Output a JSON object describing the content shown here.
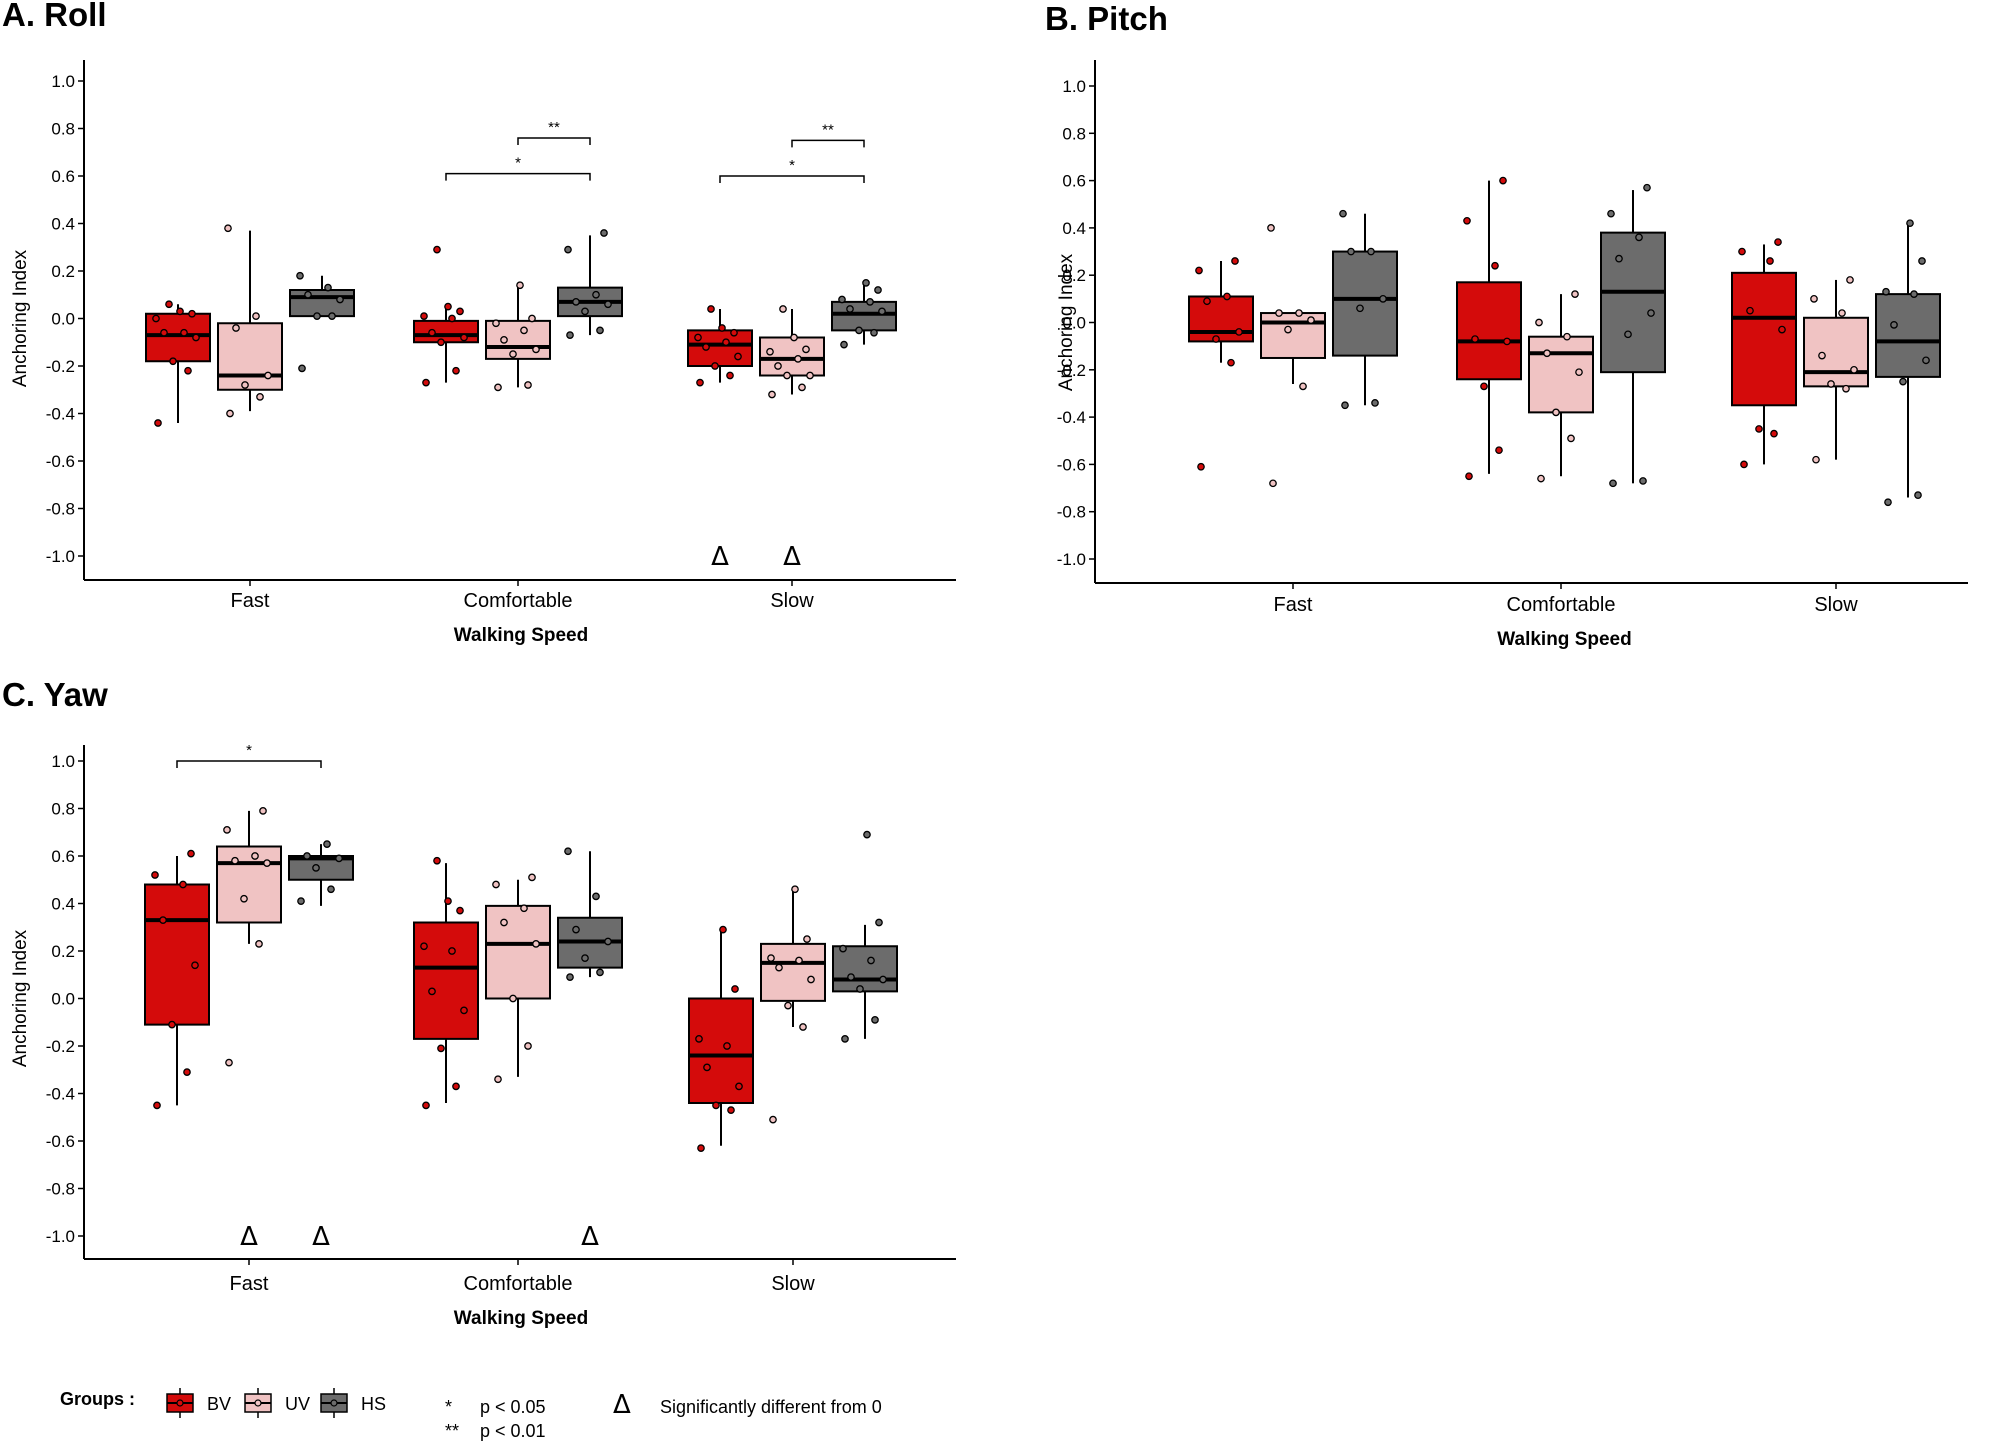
{
  "colors": {
    "BV": "#d40b0b",
    "UV": "#f0c3c3",
    "HS": "#6c6c6c"
  },
  "chart_data": [
    {
      "type": "boxplot",
      "title": "A. Roll",
      "xlabel": "Walking Speed",
      "ylabel": "Anchoring Index",
      "ylim": [
        -1.0,
        1.0
      ],
      "yticks": [
        "1.0",
        "0.8",
        "0.6",
        "0.4",
        "0.2",
        "0.0",
        "-0.2",
        "-0.4",
        "-0.6",
        "-0.8",
        "-1.0"
      ],
      "categories": [
        "Fast",
        "Comfortable",
        "Slow"
      ],
      "series": [
        {
          "name": "BV",
          "boxes": [
            {
              "min": -0.44,
              "q1": -0.18,
              "median": -0.07,
              "q3": 0.02,
              "max": 0.06,
              "points": [
                -0.44,
                -0.22,
                -0.18,
                -0.08,
                -0.06,
                -0.06,
                0.0,
                0.02,
                0.03,
                0.06
              ]
            },
            {
              "min": -0.27,
              "q1": -0.1,
              "median": -0.07,
              "q3": -0.01,
              "max": 0.05,
              "points": [
                -0.27,
                -0.22,
                -0.1,
                -0.08,
                -0.06,
                0.0,
                0.01,
                0.03,
                0.05,
                0.29
              ]
            },
            {
              "min": -0.27,
              "q1": -0.2,
              "median": -0.11,
              "q3": -0.05,
              "max": 0.04,
              "points": [
                -0.27,
                -0.24,
                -0.2,
                -0.16,
                -0.12,
                -0.1,
                -0.08,
                -0.06,
                -0.04,
                0.04
              ]
            }
          ]
        },
        {
          "name": "UV",
          "boxes": [
            {
              "min": -0.39,
              "q1": -0.3,
              "median": -0.24,
              "q3": -0.02,
              "max": 0.37,
              "points": [
                -0.4,
                -0.33,
                -0.28,
                -0.24,
                -0.04,
                0.01,
                0.38
              ]
            },
            {
              "min": -0.29,
              "q1": -0.17,
              "median": -0.12,
              "q3": -0.01,
              "max": 0.14,
              "points": [
                -0.29,
                -0.28,
                -0.15,
                -0.13,
                -0.09,
                -0.05,
                -0.02,
                0.0,
                0.14
              ]
            },
            {
              "min": -0.32,
              "q1": -0.24,
              "median": -0.17,
              "q3": -0.08,
              "max": 0.04,
              "points": [
                -0.32,
                -0.29,
                -0.24,
                -0.24,
                -0.2,
                -0.17,
                -0.14,
                -0.13,
                -0.08,
                0.04
              ]
            }
          ]
        },
        {
          "name": "HS",
          "boxes": [
            {
              "min": 0.01,
              "q1": 0.01,
              "median": 0.09,
              "q3": 0.12,
              "max": 0.18,
              "points": [
                -0.21,
                0.01,
                0.01,
                0.08,
                0.1,
                0.13,
                0.18
              ]
            },
            {
              "min": -0.07,
              "q1": 0.01,
              "median": 0.07,
              "q3": 0.13,
              "max": 0.35,
              "points": [
                -0.07,
                -0.05,
                0.03,
                0.06,
                0.07,
                0.1,
                0.29,
                0.36
              ]
            },
            {
              "min": -0.11,
              "q1": -0.05,
              "median": 0.02,
              "q3": 0.07,
              "max": 0.14,
              "points": [
                -0.11,
                -0.06,
                -0.05,
                0.03,
                0.04,
                0.07,
                0.08,
                0.12,
                0.15
              ]
            }
          ]
        }
      ],
      "significance": [
        {
          "category": "Comfortable",
          "from": "BV",
          "to": "HS",
          "label": "*",
          "y": 0.61
        },
        {
          "category": "Comfortable",
          "from": "UV",
          "to": "HS",
          "label": "**",
          "y": 0.76
        },
        {
          "category": "Slow",
          "from": "BV",
          "to": "HS",
          "label": "*",
          "y": 0.6
        },
        {
          "category": "Slow",
          "from": "UV",
          "to": "HS",
          "label": "**",
          "y": 0.75
        }
      ],
      "different_from_zero": [
        {
          "category": "Slow",
          "group": "BV"
        },
        {
          "category": "Slow",
          "group": "UV"
        }
      ]
    },
    {
      "type": "boxplot",
      "title": "B. Pitch",
      "xlabel": "Walking Speed",
      "ylabel": "Anchoring Index",
      "ylim": [
        -1.0,
        1.0
      ],
      "yticks": [
        "1.0",
        "0.8",
        "0.6",
        "0.4",
        "0.2",
        "0.0",
        "-0.2",
        "-0.4",
        "-0.6",
        "-0.8",
        "-1.0"
      ],
      "categories": [
        "Fast",
        "Comfortable",
        "Slow"
      ],
      "series": [
        {
          "name": "BV",
          "boxes": [
            {
              "min": -0.17,
              "q1": -0.08,
              "median": -0.04,
              "q3": 0.11,
              "max": 0.26,
              "points": [
                -0.61,
                -0.17,
                -0.07,
                -0.04,
                0.09,
                0.11,
                0.22,
                0.26
              ]
            },
            {
              "min": -0.64,
              "q1": -0.24,
              "median": -0.08,
              "q3": 0.17,
              "max": 0.6,
              "points": [
                -0.65,
                -0.54,
                -0.27,
                -0.08,
                -0.07,
                0.24,
                0.43,
                0.6
              ]
            },
            {
              "min": -0.6,
              "q1": -0.35,
              "median": 0.02,
              "q3": 0.21,
              "max": 0.33,
              "points": [
                -0.6,
                -0.47,
                -0.45,
                -0.03,
                0.05,
                0.26,
                0.3,
                0.34
              ]
            }
          ]
        },
        {
          "name": "UV",
          "boxes": [
            {
              "min": -0.26,
              "q1": -0.15,
              "median": 0.0,
              "q3": 0.04,
              "max": 0.04,
              "points": [
                -0.68,
                -0.27,
                -0.03,
                0.01,
                0.04,
                0.04,
                0.4
              ]
            },
            {
              "min": -0.65,
              "q1": -0.38,
              "median": -0.13,
              "q3": -0.06,
              "max": 0.12,
              "points": [
                -0.66,
                -0.49,
                -0.38,
                -0.21,
                -0.13,
                -0.06,
                0.0,
                0.12
              ]
            },
            {
              "min": -0.58,
              "q1": -0.27,
              "median": -0.21,
              "q3": 0.02,
              "max": 0.18,
              "points": [
                -0.58,
                -0.28,
                -0.26,
                -0.2,
                -0.14,
                0.04,
                0.1,
                0.18
              ]
            }
          ]
        },
        {
          "name": "HS",
          "boxes": [
            {
              "min": -0.35,
              "q1": -0.14,
              "median": 0.1,
              "q3": 0.3,
              "max": 0.46,
              "points": [
                -0.35,
                -0.34,
                0.06,
                0.1,
                0.3,
                0.3,
                0.46
              ]
            },
            {
              "min": -0.68,
              "q1": -0.21,
              "median": 0.13,
              "q3": 0.38,
              "max": 0.56,
              "points": [
                -0.68,
                -0.67,
                -0.05,
                0.04,
                0.27,
                0.36,
                0.46,
                0.57
              ]
            },
            {
              "min": -0.74,
              "q1": -0.23,
              "median": -0.08,
              "q3": 0.12,
              "max": 0.41,
              "points": [
                -0.76,
                -0.73,
                -0.25,
                -0.16,
                -0.01,
                0.12,
                0.13,
                0.26,
                0.42
              ]
            }
          ]
        }
      ],
      "significance": [],
      "different_from_zero": []
    },
    {
      "type": "boxplot",
      "title": "C. Yaw",
      "xlabel": "Walking Speed",
      "ylabel": "Anchoring Index",
      "ylim": [
        -1.0,
        1.0
      ],
      "yticks": [
        "1.0",
        "0.8",
        "0.6",
        "0.4",
        "0.2",
        "0.0",
        "-0.2",
        "-0.4",
        "-0.6",
        "-0.8",
        "-1.0"
      ],
      "categories": [
        "Fast",
        "Comfortable",
        "Slow"
      ],
      "series": [
        {
          "name": "BV",
          "boxes": [
            {
              "min": -0.45,
              "q1": -0.11,
              "median": 0.33,
              "q3": 0.48,
              "max": 0.6,
              "points": [
                -0.45,
                -0.31,
                -0.11,
                0.14,
                0.33,
                0.48,
                0.52,
                0.61
              ]
            },
            {
              "min": -0.44,
              "q1": -0.17,
              "median": 0.13,
              "q3": 0.32,
              "max": 0.57,
              "points": [
                -0.45,
                -0.37,
                -0.21,
                -0.05,
                0.03,
                0.2,
                0.22,
                0.37,
                0.41,
                0.58
              ]
            },
            {
              "min": -0.62,
              "q1": -0.44,
              "median": -0.24,
              "q3": 0.0,
              "max": 0.28,
              "points": [
                -0.63,
                -0.47,
                -0.45,
                -0.37,
                -0.29,
                -0.2,
                -0.17,
                0.04,
                0.29
              ]
            }
          ]
        },
        {
          "name": "UV",
          "boxes": [
            {
              "min": 0.23,
              "q1": 0.32,
              "median": 0.57,
              "q3": 0.64,
              "max": 0.79,
              "points": [
                -0.27,
                0.23,
                0.42,
                0.57,
                0.58,
                0.6,
                0.71,
                0.79
              ]
            },
            {
              "min": -0.33,
              "q1": 0.0,
              "median": 0.23,
              "q3": 0.39,
              "max": 0.5,
              "points": [
                -0.34,
                -0.2,
                0.0,
                0.23,
                0.32,
                0.38,
                0.48,
                0.51
              ]
            },
            {
              "min": -0.12,
              "q1": -0.01,
              "median": 0.15,
              "q3": 0.23,
              "max": 0.45,
              "points": [
                -0.51,
                -0.12,
                -0.03,
                0.08,
                0.13,
                0.16,
                0.17,
                0.25,
                0.46
              ]
            }
          ]
        },
        {
          "name": "HS",
          "boxes": [
            {
              "min": 0.39,
              "q1": 0.5,
              "median": 0.59,
              "q3": 0.6,
              "max": 0.65,
              "points": [
                0.41,
                0.46,
                0.55,
                0.59,
                0.6,
                0.65
              ]
            },
            {
              "min": 0.09,
              "q1": 0.13,
              "median": 0.24,
              "q3": 0.34,
              "max": 0.62,
              "points": [
                0.09,
                0.11,
                0.17,
                0.24,
                0.29,
                0.43,
                0.62
              ]
            },
            {
              "min": -0.17,
              "q1": 0.03,
              "median": 0.08,
              "q3": 0.22,
              "max": 0.31,
              "points": [
                -0.17,
                -0.09,
                0.04,
                0.08,
                0.09,
                0.16,
                0.21,
                0.32,
                0.69
              ]
            }
          ]
        }
      ],
      "significance": [
        {
          "category": "Fast",
          "from": "BV",
          "to": "HS",
          "label": "*",
          "y": 1.0
        }
      ],
      "different_from_zero": [
        {
          "category": "Fast",
          "group": "UV"
        },
        {
          "category": "Fast",
          "group": "HS"
        },
        {
          "category": "Comfortable",
          "group": "HS"
        }
      ]
    }
  ],
  "legend": {
    "title": "Groups :",
    "items": [
      "BV",
      "UV",
      "HS"
    ],
    "notes": [
      {
        "symbol": "*",
        "text": "p < 0.05"
      },
      {
        "symbol": "**",
        "text": "p < 0.01"
      },
      {
        "symbol": "Δ",
        "text": "Significantly different from 0"
      }
    ]
  }
}
